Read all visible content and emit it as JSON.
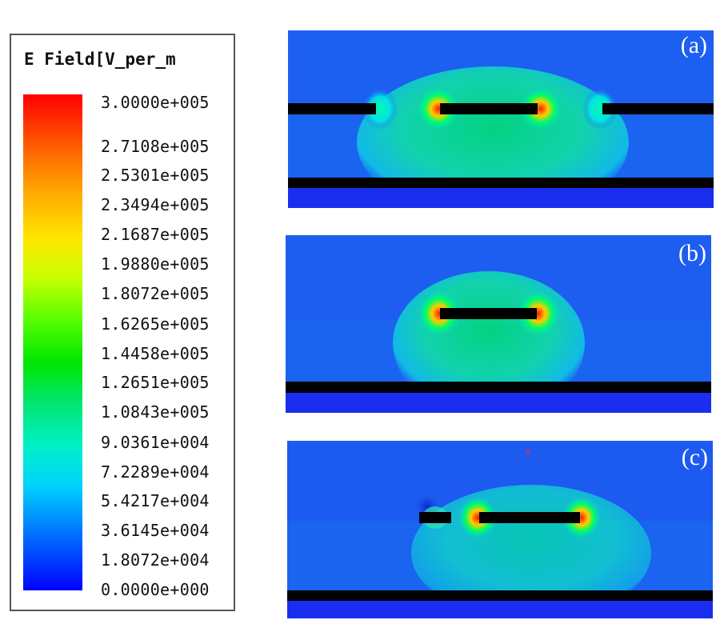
{
  "legend": {
    "title": "E Field[V_per_m",
    "ticks": [
      "3.0000e+005",
      "2.7108e+005",
      "2.5301e+005",
      "2.3494e+005",
      "2.1687e+005",
      "1.9880e+005",
      "1.8072e+005",
      "1.6265e+005",
      "1.4458e+005",
      "1.2651e+005",
      "1.0843e+005",
      "9.0361e+004",
      "7.2289e+004",
      "5.4217e+004",
      "3.6145e+004",
      "1.8072e+004",
      "0.0000e+000"
    ],
    "colors": {
      "max": "#ff0000",
      "mid": "#00e600",
      "min": "#0000ff"
    }
  },
  "panels": [
    {
      "label": "(a)"
    },
    {
      "label": "(b)"
    },
    {
      "label": "(c)"
    }
  ],
  "colors": {
    "background_field": "#1a64f0",
    "substrate_bottom": "#1a2ef0",
    "conductor": "#000000",
    "high_field": "#ff2a00"
  }
}
